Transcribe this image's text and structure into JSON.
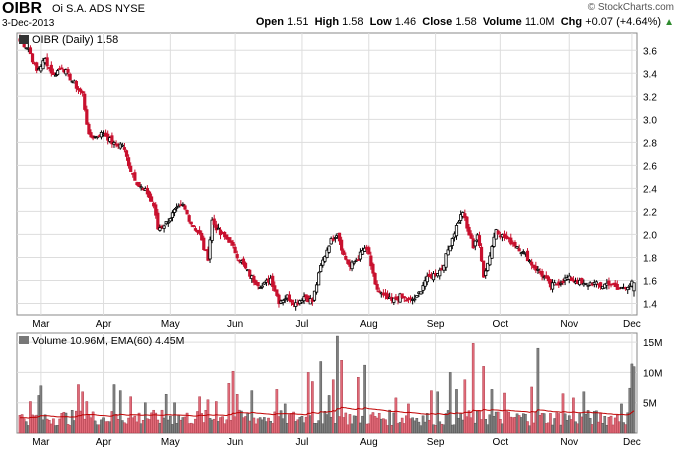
{
  "header": {
    "symbol": "OIBR",
    "name": "Oi S.A. ADS",
    "exchange": "NYSE",
    "date": "3-Dec-2013",
    "copyright": "© StockCharts.com",
    "open_label": "Open",
    "open": "1.51",
    "high_label": "High",
    "high": "1.58",
    "low_label": "Low",
    "low": "1.46",
    "close_label": "Close",
    "close": "1.58",
    "volume_label": "Volume",
    "volume": "11.0M",
    "chg_label": "Chg",
    "chg": "+0.07 (+4.64%)"
  },
  "colors": {
    "up": "#000000",
    "down": "#c8102e",
    "vol_up": "#808080",
    "vol_down": "#e06a78",
    "ema": "#c00000",
    "grid": "#dddddd"
  },
  "chart_data": [
    {
      "type": "candlestick",
      "legend": "OIBR (Daily) 1.58",
      "ylim": [
        1.3,
        3.75
      ],
      "yticks": [
        1.4,
        1.6,
        1.8,
        2.0,
        2.2,
        2.4,
        2.6,
        2.8,
        3.0,
        3.2,
        3.4,
        3.6
      ],
      "x_ticks": [
        "Mar",
        "Apr",
        "May",
        "Jun",
        "Jul",
        "Aug",
        "Sep",
        "Oct",
        "Nov",
        "Dec"
      ],
      "x_tick_index": [
        10,
        40,
        72,
        103,
        135,
        167,
        199,
        230,
        263,
        293
      ],
      "close_anchors": [
        [
          0,
          3.68
        ],
        [
          4,
          3.62
        ],
        [
          8,
          3.42
        ],
        [
          12,
          3.52
        ],
        [
          16,
          3.38
        ],
        [
          20,
          3.46
        ],
        [
          24,
          3.36
        ],
        [
          28,
          3.26
        ],
        [
          30,
          3.22
        ],
        [
          33,
          2.85
        ],
        [
          36,
          2.85
        ],
        [
          40,
          2.88
        ],
        [
          45,
          2.78
        ],
        [
          49,
          2.78
        ],
        [
          53,
          2.56
        ],
        [
          57,
          2.42
        ],
        [
          61,
          2.36
        ],
        [
          64,
          2.25
        ],
        [
          66,
          2.05
        ],
        [
          70,
          2.1
        ],
        [
          74,
          2.2
        ],
        [
          78,
          2.25
        ],
        [
          82,
          2.1
        ],
        [
          86,
          2.0
        ],
        [
          88,
          1.88
        ],
        [
          90,
          1.8
        ],
        [
          92,
          2.12
        ],
        [
          96,
          2.0
        ],
        [
          100,
          1.95
        ],
        [
          104,
          1.82
        ],
        [
          108,
          1.7
        ],
        [
          112,
          1.6
        ],
        [
          116,
          1.55
        ],
        [
          120,
          1.62
        ],
        [
          124,
          1.42
        ],
        [
          128,
          1.46
        ],
        [
          132,
          1.4
        ],
        [
          136,
          1.46
        ],
        [
          140,
          1.42
        ],
        [
          144,
          1.72
        ],
        [
          148,
          1.92
        ],
        [
          152,
          2.02
        ],
        [
          155,
          1.82
        ],
        [
          158,
          1.72
        ],
        [
          162,
          1.8
        ],
        [
          165,
          1.88
        ],
        [
          167,
          1.82
        ],
        [
          170,
          1.55
        ],
        [
          174,
          1.46
        ],
        [
          178,
          1.42
        ],
        [
          182,
          1.46
        ],
        [
          186,
          1.42
        ],
        [
          190,
          1.45
        ],
        [
          194,
          1.6
        ],
        [
          198,
          1.65
        ],
        [
          202,
          1.7
        ],
        [
          206,
          1.92
        ],
        [
          210,
          2.12
        ],
        [
          212,
          2.2
        ],
        [
          214,
          2.05
        ],
        [
          217,
          1.9
        ],
        [
          219,
          2.0
        ],
        [
          222,
          1.65
        ],
        [
          224,
          1.75
        ],
        [
          226,
          1.9
        ],
        [
          228,
          2.05
        ],
        [
          230,
          2.0
        ],
        [
          234,
          1.95
        ],
        [
          238,
          1.9
        ],
        [
          242,
          1.82
        ],
        [
          246,
          1.72
        ],
        [
          250,
          1.65
        ],
        [
          254,
          1.55
        ],
        [
          258,
          1.58
        ],
        [
          262,
          1.62
        ],
        [
          266,
          1.6
        ],
        [
          270,
          1.56
        ],
        [
          274,
          1.58
        ],
        [
          278,
          1.55
        ],
        [
          282,
          1.58
        ],
        [
          286,
          1.52
        ],
        [
          290,
          1.55
        ],
        [
          294,
          1.58
        ]
      ],
      "last": {
        "open": 1.51,
        "high": 1.58,
        "low": 1.46,
        "close": 1.58
      }
    },
    {
      "type": "bar",
      "legend_prefix": "Volume",
      "legend": "Volume 10.96M, EMA(60) 4.45M",
      "ylim": [
        0,
        16.5
      ],
      "yticks": [
        5,
        10,
        15
      ],
      "ytick_labels": [
        "5M",
        "10M",
        "15M"
      ],
      "unit": "M",
      "ema_period": 60,
      "ema_last": 4.45,
      "last_volume": 10.96,
      "peaks": [
        [
          5,
          5.2
        ],
        [
          9,
          6.2
        ],
        [
          10,
          7.8
        ],
        [
          28,
          8.0
        ],
        [
          30,
          6.8
        ],
        [
          32,
          5.2
        ],
        [
          45,
          8.0
        ],
        [
          48,
          7.0
        ],
        [
          53,
          6.0
        ],
        [
          60,
          5.0
        ],
        [
          70,
          6.4
        ],
        [
          74,
          5.0
        ],
        [
          86,
          6.0
        ],
        [
          90,
          5.5
        ],
        [
          94,
          5.2
        ],
        [
          100,
          8.2
        ],
        [
          102,
          10.2
        ],
        [
          104,
          6.4
        ],
        [
          111,
          7.0
        ],
        [
          123,
          7.2
        ],
        [
          127,
          4.8
        ],
        [
          138,
          10.0
        ],
        [
          140,
          8.5
        ],
        [
          144,
          11.8
        ],
        [
          148,
          6.2
        ],
        [
          150,
          8.8
        ],
        [
          152,
          16.0
        ],
        [
          154,
          12.0
        ],
        [
          162,
          9.2
        ],
        [
          165,
          11.2
        ],
        [
          180,
          5.8
        ],
        [
          186,
          4.8
        ],
        [
          197,
          7.0
        ],
        [
          200,
          6.8
        ],
        [
          206,
          10.0
        ],
        [
          209,
          7.2
        ],
        [
          213,
          8.8
        ],
        [
          217,
          14.8
        ],
        [
          222,
          11.0
        ],
        [
          226,
          7.2
        ],
        [
          232,
          6.6
        ],
        [
          245,
          7.6
        ],
        [
          248,
          14.0
        ],
        [
          260,
          6.5
        ],
        [
          265,
          5.8
        ],
        [
          270,
          6.8
        ],
        [
          288,
          4.8
        ],
        [
          292,
          7.4
        ],
        [
          293,
          11.4
        ],
        [
          294,
          10.96
        ]
      ]
    }
  ]
}
